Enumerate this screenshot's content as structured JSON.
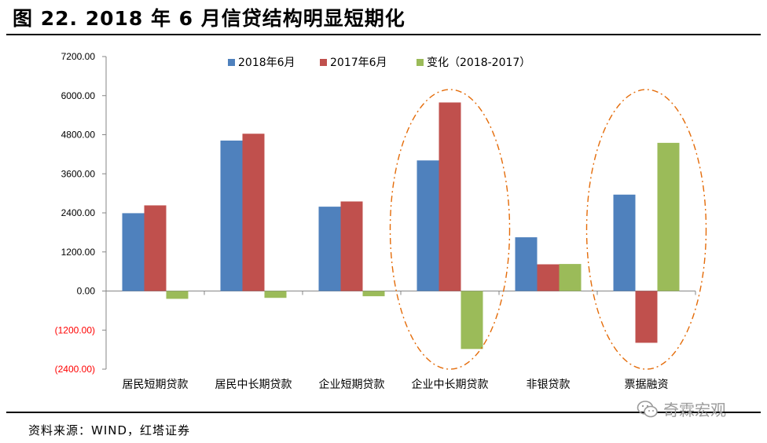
{
  "figure": {
    "title": "图 22. 2018 年 6 月信贷结构明显短期化",
    "source": "资料来源：WIND，红塔证券",
    "watermark": "奇霖宏观"
  },
  "colors": {
    "series_2018": "#4f81bd",
    "series_2017": "#c0504d",
    "series_change": "#9bbb59",
    "negative_tick": "#ff0000",
    "highlight_ellipse": "#e46c0a"
  },
  "chart_data": {
    "type": "bar",
    "title": "",
    "xlabel": "",
    "ylabel": "",
    "categories": [
      "居民短期贷款",
      "居民中长期贷款",
      "企业短期贷款",
      "企业中长期贷款",
      "非银贷款",
      "票据融资"
    ],
    "series": [
      {
        "name": "2018年6月",
        "values": [
          2390,
          4620,
          2590,
          4010,
          1650,
          2960
        ]
      },
      {
        "name": "2017年6月",
        "values": [
          2630,
          4830,
          2750,
          5790,
          820,
          -1590
        ]
      },
      {
        "name": "变化（2018-2017）",
        "values": [
          -240,
          -210,
          -160,
          -1780,
          830,
          4550
        ]
      }
    ],
    "ylim": [
      -2400,
      7200
    ],
    "yticks": [
      -2400,
      -1200,
      0,
      1200,
      2400,
      3600,
      4800,
      6000,
      7200
    ],
    "ytick_labels": [
      "(2400.00)",
      "(1200.00)",
      "0.00",
      "1200.00",
      "2400.00",
      "3600.00",
      "4800.00",
      "6000.00",
      "7200.00"
    ],
    "legend_position": "top",
    "grid": false,
    "highlighted_categories": [
      "企业中长期贷款",
      "票据融资"
    ]
  }
}
